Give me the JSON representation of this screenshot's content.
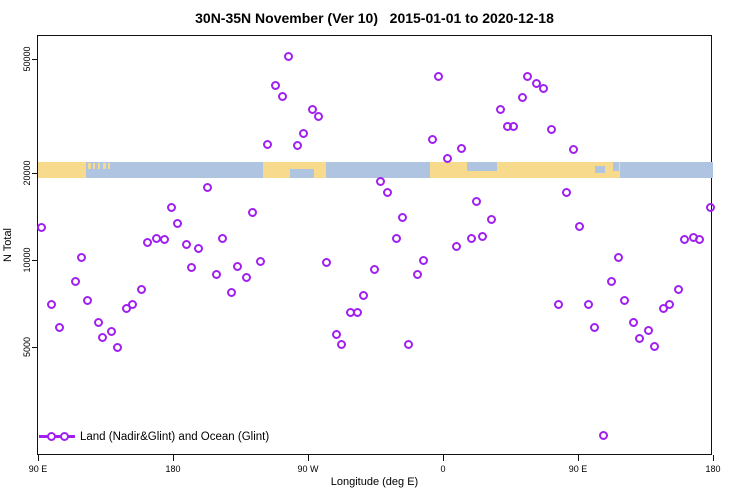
{
  "chart_data": {
    "type": "scatter",
    "title": "30N-35N November (Ver 10)   2015-01-01 to 2020-12-18",
    "xlabel": "Longitude (deg E)",
    "ylabel": "N Total",
    "x_axis": {
      "description": "longitude wrapping eastward from 90E across 450 degrees",
      "domain_deg": [
        0,
        450
      ],
      "ticks": [
        {
          "deg": 0,
          "label": "90 E"
        },
        {
          "deg": 90,
          "label": "180"
        },
        {
          "deg": 180,
          "label": "90 W"
        },
        {
          "deg": 270,
          "label": "0"
        },
        {
          "deg": 360,
          "label": "90 E"
        },
        {
          "deg": 450,
          "label": "180"
        }
      ]
    },
    "y_axis": {
      "scale": "log",
      "ticks": [
        5000,
        10000,
        20000,
        50000
      ],
      "tick_labels": [
        "5000",
        "10000",
        "20000",
        "50000"
      ],
      "approx_range": [
        2300,
        56000
      ]
    },
    "legend": [
      {
        "label": "Land (Nadir&Glint) and Ocean (Glint)",
        "marker": "line-with-open-circles",
        "color": "#A020F0"
      }
    ],
    "point_color": "#A020F0",
    "point_format": "[deg_east_of_90E, N_total]",
    "points": [
      [
        2,
        13000
      ],
      [
        9.3,
        7000
      ],
      [
        14,
        5850
      ],
      [
        24.7,
        8450
      ],
      [
        28.7,
        10200
      ],
      [
        32.7,
        7260
      ],
      [
        40,
        6050
      ],
      [
        43.3,
        5400
      ],
      [
        48.7,
        5660
      ],
      [
        53.3,
        4950
      ],
      [
        58.7,
        6800
      ],
      [
        63.3,
        7030
      ],
      [
        68.7,
        7900
      ],
      [
        73.3,
        11500
      ],
      [
        78.7,
        11900
      ],
      [
        84,
        11800
      ],
      [
        88.7,
        15200
      ],
      [
        93.3,
        13400
      ],
      [
        98.7,
        11300
      ],
      [
        102,
        9400
      ],
      [
        107.3,
        11000
      ],
      [
        112.7,
        17800
      ],
      [
        118.7,
        8900
      ],
      [
        123.3,
        11900
      ],
      [
        128.7,
        7700
      ],
      [
        133.3,
        9500
      ],
      [
        138.7,
        8700
      ],
      [
        142.7,
        14600
      ],
      [
        148,
        9900
      ],
      [
        153.3,
        25100
      ],
      [
        158,
        40500
      ],
      [
        162.7,
        37100
      ],
      [
        167.3,
        51000
      ],
      [
        172.7,
        25000
      ],
      [
        177.3,
        27400
      ],
      [
        182.7,
        33200
      ],
      [
        187.3,
        31600
      ],
      [
        192,
        9800
      ],
      [
        198.7,
        5500
      ],
      [
        202,
        5070
      ],
      [
        208,
        6550
      ],
      [
        212.7,
        6550
      ],
      [
        216.7,
        7550
      ],
      [
        224,
        9300
      ],
      [
        228,
        18800
      ],
      [
        232.7,
        17200
      ],
      [
        238.7,
        11900
      ],
      [
        242.7,
        14100
      ],
      [
        247.3,
        5070
      ],
      [
        252.7,
        8870
      ],
      [
        257.3,
        9950
      ],
      [
        263.3,
        26300
      ],
      [
        267.3,
        43200
      ],
      [
        272.7,
        22600
      ],
      [
        278.7,
        11100
      ],
      [
        282,
        24300
      ],
      [
        288.7,
        11900
      ],
      [
        292,
        16000
      ],
      [
        296,
        12100
      ],
      [
        302,
        13800
      ],
      [
        308,
        33200
      ],
      [
        313.3,
        29000
      ],
      [
        317.3,
        29000
      ],
      [
        322.7,
        36800
      ],
      [
        326,
        43500
      ],
      [
        332,
        40900
      ],
      [
        336.7,
        39300
      ],
      [
        342,
        28500
      ],
      [
        347.3,
        7030
      ],
      [
        352,
        17200
      ],
      [
        356.7,
        24200
      ],
      [
        361.3,
        13100
      ],
      [
        367.3,
        7000
      ],
      [
        371.3,
        5850
      ],
      [
        377.3,
        2450
      ],
      [
        382,
        8400
      ],
      [
        386.7,
        10200
      ],
      [
        390.7,
        7260
      ],
      [
        397.3,
        6050
      ],
      [
        401.3,
        5360
      ],
      [
        406.7,
        5700
      ],
      [
        411.3,
        5000
      ],
      [
        417.3,
        6800
      ],
      [
        421.3,
        7030
      ],
      [
        426.7,
        7900
      ],
      [
        431.3,
        11800
      ],
      [
        436.7,
        12000
      ],
      [
        440.7,
        11800
      ],
      [
        448,
        15200
      ]
    ],
    "map_band": {
      "description": "land/ocean strip of the 30N-35N latitude belt drawn at N=20000",
      "ocean_color": "#AFC4E0",
      "land_color": "#F8DA8C",
      "band_center_n": 20000,
      "land_segments_deg": [
        [
          0,
          32
        ],
        [
          150,
          192
        ],
        [
          261,
          388
        ]
      ],
      "island_specks_deg": [
        [
          33,
          35
        ],
        [
          36.5,
          38
        ],
        [
          40,
          41.5
        ],
        [
          43.5,
          45
        ],
        [
          46.5,
          48
        ]
      ],
      "ocean_inlets": [
        {
          "range": [
            168,
            184
          ],
          "part": "bottom"
        },
        {
          "range": [
            286,
            306
          ],
          "part": "top"
        },
        {
          "range": [
            371,
            378
          ],
          "part": "middle"
        },
        {
          "range": [
            383,
            387
          ],
          "part": "top"
        }
      ]
    }
  }
}
